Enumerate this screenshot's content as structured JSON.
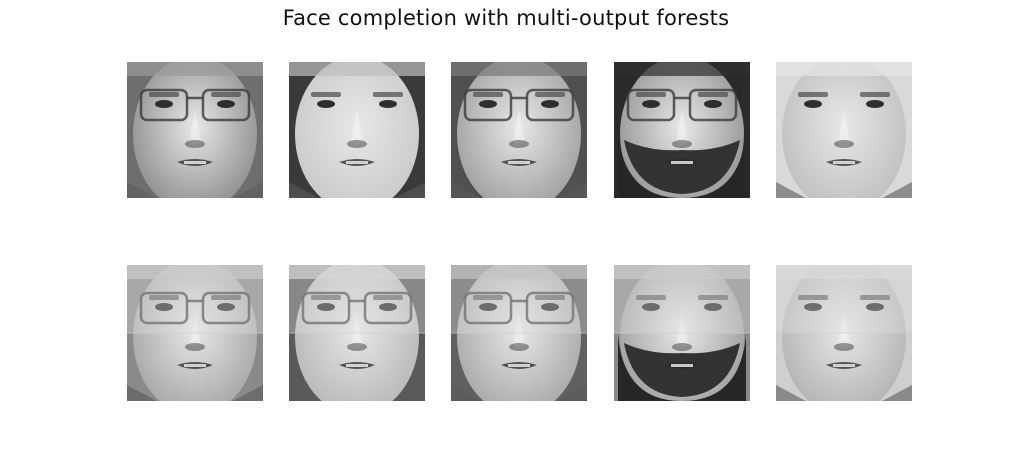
{
  "figure": {
    "title": "Face completion with multi-output forests"
  },
  "rows": [
    {
      "name": "true-faces",
      "faces": [
        {
          "id": "face-1",
          "glasses": true,
          "beard": false,
          "skin": "#8a8a8a",
          "bg": "#6e6e6e",
          "hair": "#9a9a9a"
        },
        {
          "id": "face-2",
          "glasses": false,
          "beard": false,
          "skin": "#c8c8c8",
          "bg": "#3a3a3a",
          "hair": "#bdbdbd"
        },
        {
          "id": "face-3",
          "glasses": true,
          "beard": false,
          "skin": "#9c9c9c",
          "bg": "#505050",
          "hair": "#7a7a7a"
        },
        {
          "id": "face-4",
          "glasses": true,
          "beard": true,
          "skin": "#8f8f8f",
          "bg": "#2a2a2a",
          "hair": "#2f2f2f"
        },
        {
          "id": "face-5",
          "glasses": false,
          "beard": false,
          "skin": "#bdbdbd",
          "bg": "#d9d9d9",
          "hair": "#e6e6e6"
        }
      ]
    },
    {
      "name": "completed-faces",
      "faces": [
        {
          "id": "face-6",
          "glasses": true,
          "beard": false,
          "skin": "#a3a3a3",
          "bg": "#8a8a8a",
          "hair": "#c0c0c0",
          "blurred_top": true
        },
        {
          "id": "face-7",
          "glasses": true,
          "beard": false,
          "skin": "#b5b5b5",
          "bg": "#5a5a5a",
          "hair": "#d0d0d0",
          "blurred_top": true
        },
        {
          "id": "face-8",
          "glasses": true,
          "beard": false,
          "skin": "#a5a5a5",
          "bg": "#606060",
          "hair": "#b5b5b5",
          "blurred_top": true
        },
        {
          "id": "face-9",
          "glasses": false,
          "beard": true,
          "skin": "#9a9a9a",
          "bg": "#8a8a8a",
          "hair": "#c2c2c2",
          "blurred_top": true
        },
        {
          "id": "face-10",
          "glasses": false,
          "beard": false,
          "skin": "#b0b0b0",
          "bg": "#cfcfcf",
          "hair": "#d8d8d8",
          "blurred_top": true
        }
      ]
    }
  ]
}
